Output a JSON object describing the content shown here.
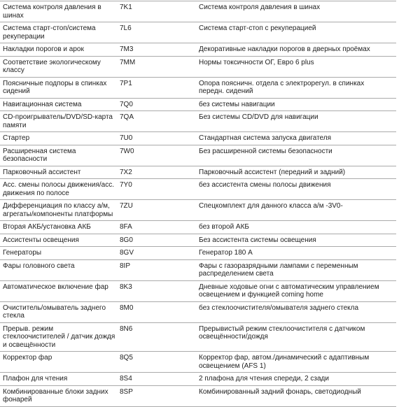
{
  "rows": [
    {
      "feature": "Система контроля давления в шинах",
      "code": "7K1",
      "description": "Система контроля давления в шинах"
    },
    {
      "feature": "Система старт-стоп/система рекуперации",
      "code": "7L6",
      "description": "Система старт-стоп с рекуперацией"
    },
    {
      "feature": "Накладки порогов и арок",
      "code": "7M3",
      "description": "Декоративные накладки порогов в дверных проёмах"
    },
    {
      "feature": "Соответствие экологическому классу",
      "code": "7MM",
      "description": "Нормы токсичности ОГ, Евро 6 plus"
    },
    {
      "feature": "Поясничные подпоры в спинках сидений",
      "code": "7P1",
      "description": "Опора поясничн. отдела с электрорегул. в спинках передн. сидений"
    },
    {
      "feature": "Навигационная система",
      "code": "7Q0",
      "description": "без системы навигации"
    },
    {
      "feature": "CD-проигрыватель/DVD/SD-карта памяти",
      "code": "7QA",
      "description": "Без системы CD/DVD для навигации"
    },
    {
      "feature": "Стартер",
      "code": "7U0",
      "description": "Стандартная система запуска двигателя"
    },
    {
      "feature": "Расширенная система безопасности",
      "code": "7W0",
      "description": "Без расширенной системы безопасности"
    },
    {
      "feature": "Парковочный ассистент",
      "code": "7X2",
      "description": "Парковочный ассистент (передний и задний)"
    },
    {
      "feature": "Асс. смены полосы движения/асс. движения по полосе",
      "code": "7Y0",
      "description": "без ассистента смены полосы движения"
    },
    {
      "feature": "Дифференциация по классу а/м, агрегаты/компоненты платформы",
      "code": "7ZU",
      "description": "Спецкомплект для данного класса а/м -3V0-"
    },
    {
      "feature": "Вторая АКБ/установка АКБ",
      "code": "8FA",
      "description": "без второй АКБ"
    },
    {
      "feature": "Ассистенты освещения",
      "code": "8G0",
      "description": "Без ассистента системы освещения"
    },
    {
      "feature": "Генераторы",
      "code": "8GV",
      "description": "Генератор 180 А"
    },
    {
      "feature": "Фары головного света",
      "code": "8IP",
      "description": "Фары с газоразрядными лампами с переменным распределением света"
    },
    {
      "feature": "Автоматическое включение фар",
      "code": "8K3",
      "description": "Дневные ходовые огни с автоматическим управлением освещением и функцией coming home"
    },
    {
      "feature": "Очиститель/омыватель заднего стекла",
      "code": "8M0",
      "description": "без стеклоочистителя/омывателя заднего стекла"
    },
    {
      "feature": "Прерыв. режим стеклоочистителей / датчик дождя и освещённости",
      "code": "8N6",
      "description": "Прерывистый режим стеклоочистителя с датчиком освещённости/дождя"
    },
    {
      "feature": "Корректор фар",
      "code": "8Q5",
      "description": "Корректор фар, автом./динамический с адаптивным освещением (AFS 1)"
    },
    {
      "feature": "Плафон для чтения",
      "code": "8S4",
      "description": "2 плафона для чтения спереди, 2 сзади"
    },
    {
      "feature": "Комбинированные блоки задних фонарей",
      "code": "8SP",
      "description": "Комбинированный задний фонарь, светодиодный"
    }
  ]
}
